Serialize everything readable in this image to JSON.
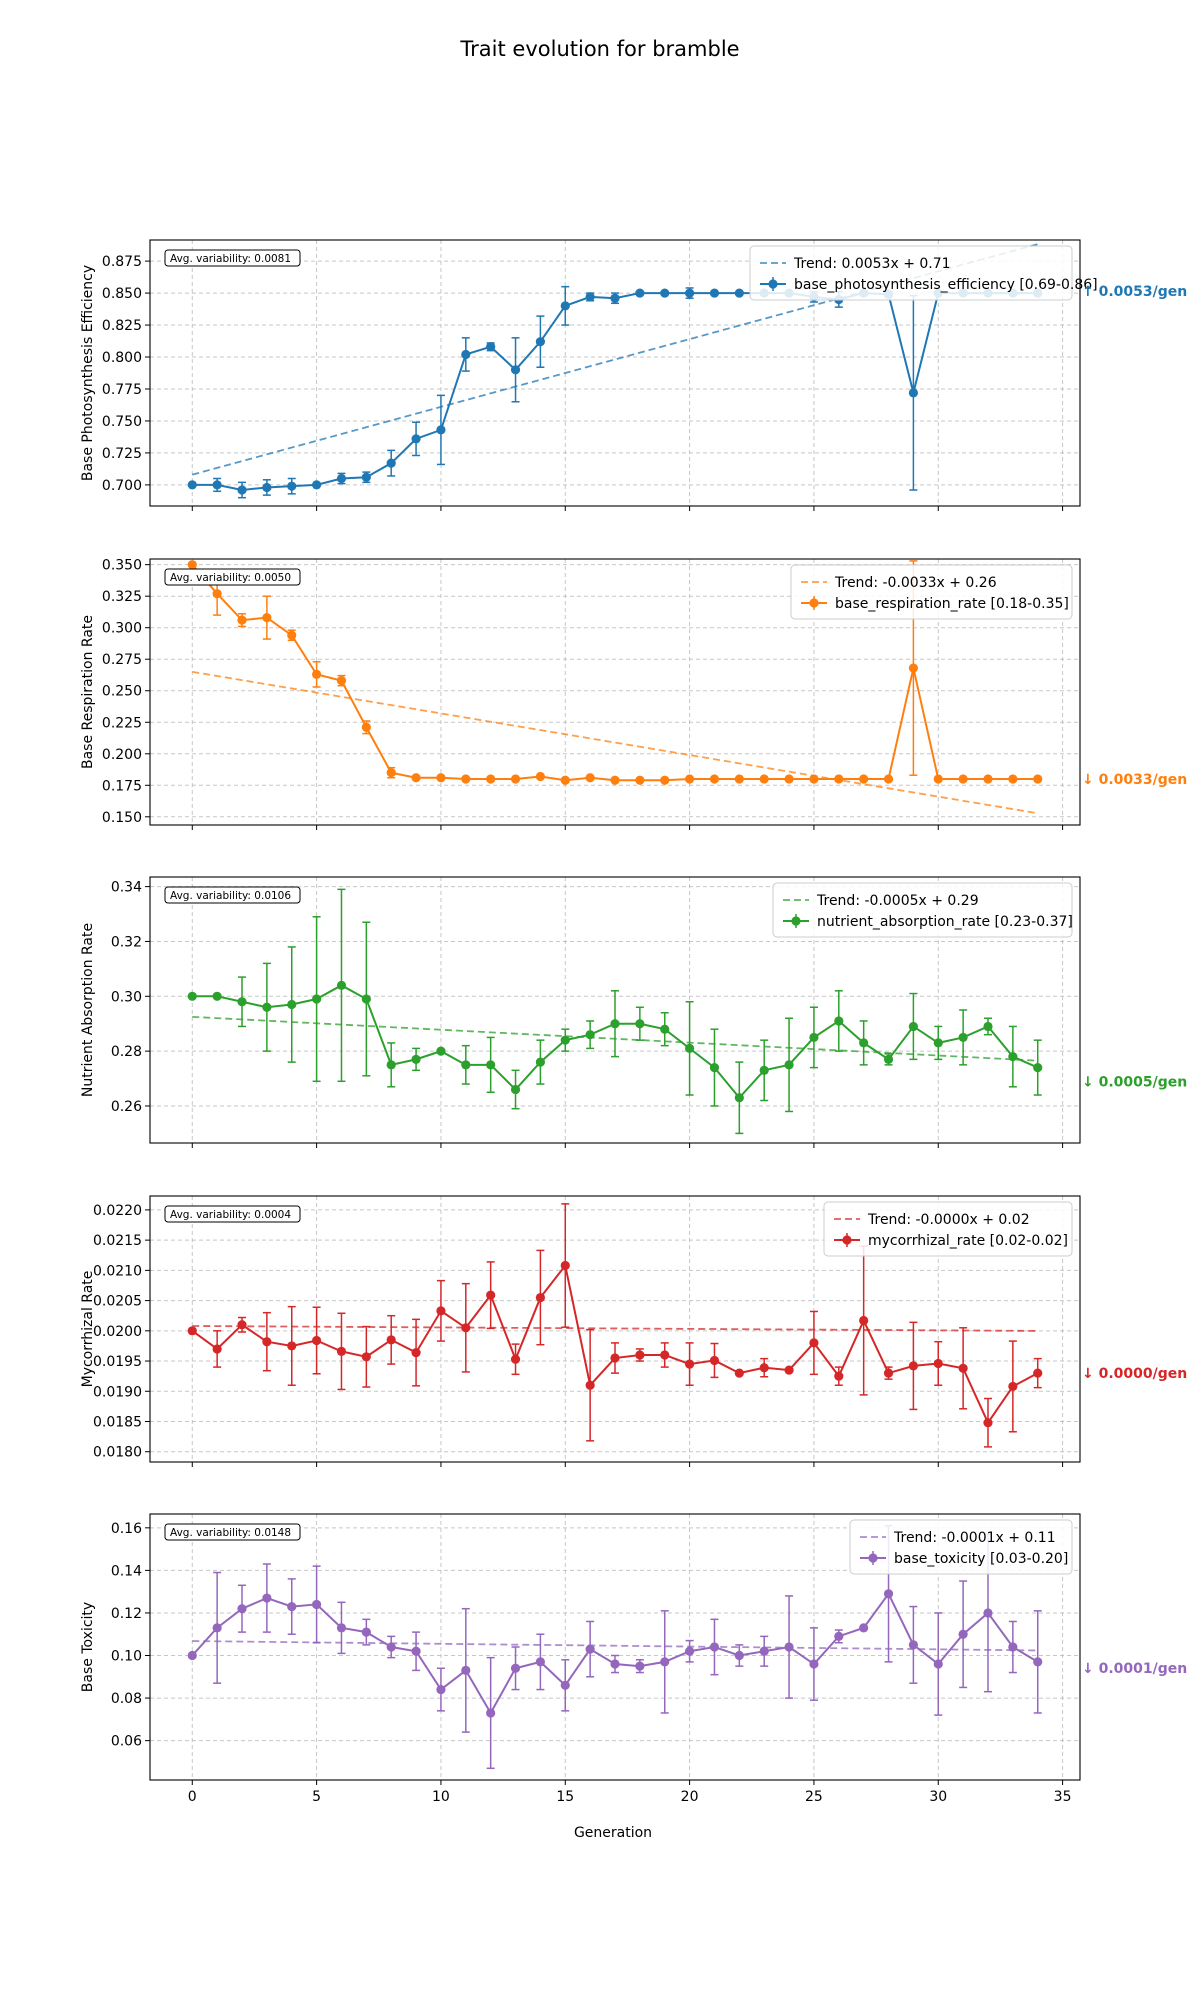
{
  "title": "Trait evolution for bramble",
  "xlabel": "Generation",
  "x_ticks": [
    0,
    5,
    10,
    15,
    20,
    25,
    30,
    35
  ],
  "xlim": [
    -1.7,
    35.7
  ],
  "chart_data": [
    {
      "type": "line",
      "ylabel": "Base Photosynthesis Efficiency",
      "ylim": [
        0.6835,
        0.8915
      ],
      "y_ticks": [
        0.7,
        0.725,
        0.75,
        0.775,
        0.8,
        0.825,
        0.85,
        0.875
      ],
      "y_tick_labels": [
        "0.700",
        "0.725",
        "0.750",
        "0.775",
        "0.800",
        "0.825",
        "0.850",
        "0.875"
      ],
      "color": "#1f77b4",
      "avg_variability": "Avg. variability: 0.0081",
      "trend_label": "Trend: 0.0053x + 0.71",
      "trend": {
        "slope": 0.0053,
        "intercept": 0.708
      },
      "series": [
        {
          "name": "base_photosynthesis_efficiency [0.69-0.86]",
          "x": [
            0,
            1,
            2,
            3,
            4,
            5,
            6,
            7,
            8,
            9,
            10,
            11,
            12,
            13,
            14,
            15,
            16,
            17,
            18,
            19,
            20,
            21,
            22,
            23,
            24,
            25,
            26,
            27,
            28,
            29,
            30,
            31,
            32,
            33,
            34
          ],
          "y": [
            0.7,
            0.7,
            0.696,
            0.698,
            0.699,
            0.7,
            0.705,
            0.706,
            0.717,
            0.736,
            0.743,
            0.802,
            0.808,
            0.79,
            0.812,
            0.84,
            0.847,
            0.846,
            0.85,
            0.85,
            0.85,
            0.85,
            0.85,
            0.85,
            0.85,
            0.847,
            0.845,
            0.85,
            0.849,
            0.772,
            0.85,
            0.85,
            0.85,
            0.85,
            0.85
          ],
          "err": [
            0,
            0.005,
            0.006,
            0.006,
            0.006,
            0,
            0.004,
            0.004,
            0.01,
            0.013,
            0.027,
            0.013,
            0.003,
            0.025,
            0.02,
            0.015,
            0.003,
            0.004,
            0,
            0,
            0.004,
            0,
            0,
            0,
            0,
            0.004,
            0.006,
            0,
            0.002,
            0.076,
            0,
            0,
            0,
            0,
            0
          ]
        }
      ],
      "slope_label": "↑ 0.0053/gen"
    },
    {
      "type": "line",
      "ylabel": "Base Respiration Rate",
      "ylim": [
        0.1435,
        0.3545
      ],
      "y_ticks": [
        0.15,
        0.175,
        0.2,
        0.225,
        0.25,
        0.275,
        0.3,
        0.325,
        0.35
      ],
      "y_tick_labels": [
        "0.150",
        "0.175",
        "0.200",
        "0.225",
        "0.250",
        "0.275",
        "0.300",
        "0.325",
        "0.350"
      ],
      "color": "#ff7f0e",
      "avg_variability": "Avg. variability: 0.0050",
      "trend_label": "Trend: -0.0033x + 0.26",
      "trend": {
        "slope": -0.0033,
        "intercept": 0.265
      },
      "series": [
        {
          "name": "base_respiration_rate [0.18-0.35]",
          "x": [
            0,
            1,
            2,
            3,
            4,
            5,
            6,
            7,
            8,
            9,
            10,
            11,
            12,
            13,
            14,
            15,
            16,
            17,
            18,
            19,
            20,
            21,
            22,
            23,
            24,
            25,
            26,
            27,
            28,
            29,
            30,
            31,
            32,
            33,
            34
          ],
          "y": [
            0.35,
            0.327,
            0.306,
            0.308,
            0.294,
            0.263,
            0.258,
            0.221,
            0.185,
            0.181,
            0.181,
            0.18,
            0.18,
            0.18,
            0.182,
            0.179,
            0.181,
            0.179,
            0.179,
            0.179,
            0.18,
            0.18,
            0.18,
            0.18,
            0.18,
            0.18,
            0.18,
            0.18,
            0.18,
            0.268,
            0.18,
            0.18,
            0.18,
            0.18,
            0.18
          ],
          "err": [
            0,
            0.017,
            0.005,
            0.017,
            0.004,
            0.01,
            0.004,
            0.005,
            0.004,
            0,
            0,
            0,
            0,
            0,
            0,
            0,
            0,
            0,
            0,
            0,
            0,
            0,
            0,
            0,
            0,
            0,
            0,
            0,
            0,
            0.085,
            0,
            0,
            0,
            0,
            0
          ]
        }
      ],
      "slope_label": "↓ 0.0033/gen"
    },
    {
      "type": "line",
      "ylabel": "Nutrient Absorption Rate",
      "ylim": [
        0.2465,
        0.3435
      ],
      "y_ticks": [
        0.26,
        0.28,
        0.3,
        0.32,
        0.34
      ],
      "y_tick_labels": [
        "0.26",
        "0.28",
        "0.30",
        "0.32",
        "0.34"
      ],
      "color": "#2ca02c",
      "avg_variability": "Avg. variability: 0.0106",
      "trend_label": "Trend: -0.0005x + 0.29",
      "trend": {
        "slope": -0.00047,
        "intercept": 0.2925
      },
      "series": [
        {
          "name": "nutrient_absorption_rate [0.23-0.37]",
          "x": [
            0,
            1,
            2,
            3,
            4,
            5,
            6,
            7,
            8,
            9,
            10,
            11,
            12,
            13,
            14,
            15,
            16,
            17,
            18,
            19,
            20,
            21,
            22,
            23,
            24,
            25,
            26,
            27,
            28,
            29,
            30,
            31,
            32,
            33,
            34
          ],
          "y": [
            0.3,
            0.3,
            0.298,
            0.296,
            0.297,
            0.299,
            0.304,
            0.299,
            0.275,
            0.277,
            0.28,
            0.275,
            0.275,
            0.266,
            0.276,
            0.284,
            0.286,
            0.29,
            0.29,
            0.288,
            0.281,
            0.274,
            0.263,
            0.273,
            0.275,
            0.285,
            0.291,
            0.283,
            0.277,
            0.289,
            0.283,
            0.285,
            0.289,
            0.278,
            0.274
          ],
          "err": [
            0,
            0,
            0.009,
            0.016,
            0.021,
            0.03,
            0.035,
            0.028,
            0.008,
            0.004,
            0,
            0.007,
            0.01,
            0.007,
            0.008,
            0.004,
            0.005,
            0.012,
            0.006,
            0.006,
            0.017,
            0.014,
            0.013,
            0.011,
            0.017,
            0.011,
            0.011,
            0.008,
            0.002,
            0.012,
            0.006,
            0.01,
            0.003,
            0.011,
            0.01
          ]
        }
      ],
      "slope_label": "↓ 0.0005/gen"
    },
    {
      "type": "line",
      "ylabel": "Mycorrhizal Rate",
      "ylim": [
        0.01783,
        0.02223
      ],
      "y_ticks": [
        0.018,
        0.0185,
        0.019,
        0.0195,
        0.02,
        0.0205,
        0.021,
        0.0215,
        0.022
      ],
      "y_tick_labels": [
        "0.0180",
        "0.0185",
        "0.0190",
        "0.0195",
        "0.0200",
        "0.0205",
        "0.0210",
        "0.0215",
        "0.0220"
      ],
      "color": "#d62728",
      "avg_variability": "Avg. variability: 0.0004",
      "trend_label": "Trend: -0.0000x + 0.02",
      "trend": {
        "slope": -2.4e-06,
        "intercept": 0.02008
      },
      "series": [
        {
          "name": "mycorrhizal_rate [0.02-0.02]",
          "x": [
            0,
            1,
            2,
            3,
            4,
            5,
            6,
            7,
            8,
            9,
            10,
            11,
            12,
            13,
            14,
            15,
            16,
            17,
            18,
            19,
            20,
            21,
            22,
            23,
            24,
            25,
            26,
            27,
            28,
            29,
            30,
            31,
            32,
            33,
            34
          ],
          "y": [
            0.02,
            0.0197,
            0.0201,
            0.01982,
            0.01975,
            0.01984,
            0.01966,
            0.01957,
            0.01985,
            0.01964,
            0.02033,
            0.02005,
            0.02059,
            0.01953,
            0.02055,
            0.02108,
            0.0191,
            0.01955,
            0.0196,
            0.0196,
            0.01945,
            0.01951,
            0.0193,
            0.01939,
            0.01935,
            0.0198,
            0.01925,
            0.02017,
            0.0193,
            0.01942,
            0.01946,
            0.01938,
            0.01848,
            0.01908,
            0.0193
          ],
          "err": [
            0,
            0.0003,
            0.00012,
            0.00048,
            0.00065,
            0.00055,
            0.00063,
            0.0005,
            0.0004,
            0.00055,
            0.0005,
            0.00073,
            0.00055,
            0.00025,
            0.00078,
            0.00102,
            0.00092,
            0.00025,
            0.0001,
            0.0002,
            0.00035,
            0.00028,
            0,
            0.00015,
            0,
            0.00052,
            0.00015,
            0.00123,
            0.0001,
            0.00072,
            0.00036,
            0.00067,
            0.0004,
            0.00075,
            0.00024
          ]
        }
      ],
      "slope_label": "↓ 0.0000/gen"
    },
    {
      "type": "line",
      "ylabel": "Base Toxicity",
      "ylim": [
        0.0415,
        0.1665
      ],
      "y_ticks": [
        0.06,
        0.08,
        0.1,
        0.12,
        0.14,
        0.16
      ],
      "y_tick_labels": [
        "0.06",
        "0.08",
        "0.10",
        "0.12",
        "0.14",
        "0.16"
      ],
      "color": "#9467bd",
      "avg_variability": "Avg. variability: 0.0148",
      "trend_label": "Trend: -0.0001x + 0.11",
      "trend": {
        "slope": -0.00013,
        "intercept": 0.1068
      },
      "series": [
        {
          "name": "base_toxicity [0.03-0.20]",
          "x": [
            0,
            1,
            2,
            3,
            4,
            5,
            6,
            7,
            8,
            9,
            10,
            11,
            12,
            13,
            14,
            15,
            16,
            17,
            18,
            19,
            20,
            21,
            22,
            23,
            24,
            25,
            26,
            27,
            28,
            29,
            30,
            31,
            32,
            33,
            34
          ],
          "y": [
            0.1,
            0.113,
            0.122,
            0.127,
            0.123,
            0.124,
            0.113,
            0.111,
            0.104,
            0.102,
            0.084,
            0.093,
            0.073,
            0.094,
            0.097,
            0.086,
            0.103,
            0.096,
            0.095,
            0.097,
            0.102,
            0.104,
            0.1,
            0.102,
            0.104,
            0.096,
            0.109,
            0.113,
            0.129,
            0.105,
            0.096,
            0.11,
            0.12,
            0.104,
            0.097
          ],
          "err": [
            0,
            0.026,
            0.011,
            0.016,
            0.013,
            0.018,
            0.012,
            0.006,
            0.005,
            0.009,
            0.01,
            0.029,
            0.026,
            0.01,
            0.013,
            0.012,
            0.013,
            0.004,
            0.003,
            0.024,
            0.005,
            0.013,
            0.005,
            0.007,
            0.024,
            0.017,
            0.003,
            0,
            0.032,
            0.018,
            0.024,
            0.025,
            0.037,
            0.012,
            0.024
          ]
        }
      ],
      "slope_label": "↓ 0.0001/gen"
    }
  ]
}
